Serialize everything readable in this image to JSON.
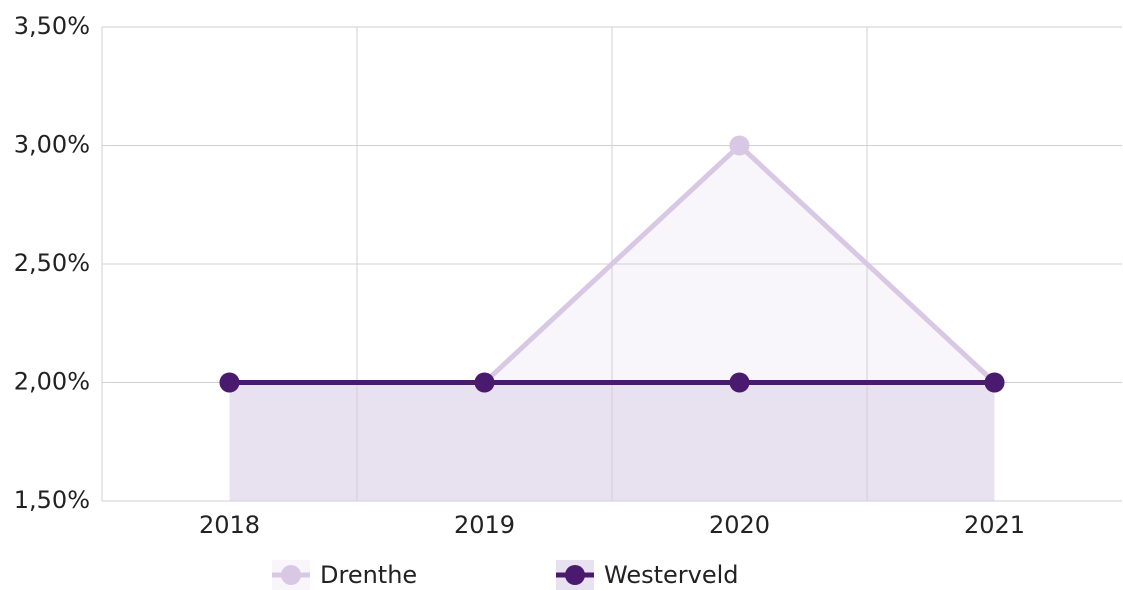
{
  "chart_data": {
    "type": "line",
    "categories": [
      "2018",
      "2019",
      "2020",
      "2021"
    ],
    "series": [
      {
        "name": "Drenthe",
        "color": "#d8c8e4",
        "fill": "#f8f6fb",
        "values": [
          2,
          2,
          3,
          2
        ]
      },
      {
        "name": "Westerveld",
        "color": "#4a1a6e",
        "fill": "#e8e2f0",
        "values": [
          2,
          2,
          2,
          2
        ]
      }
    ],
    "ylim": [
      1.5,
      3.5
    ],
    "yticks": [
      {
        "value": 1.5,
        "label": "1,50%"
      },
      {
        "value": 2,
        "label": "2,00%"
      },
      {
        "value": 2.5,
        "label": "2,50%"
      },
      {
        "value": 3,
        "label": "3,00%"
      },
      {
        "value": 3.5,
        "label": "3,50%"
      }
    ],
    "grid": true,
    "legend": "bottom"
  }
}
